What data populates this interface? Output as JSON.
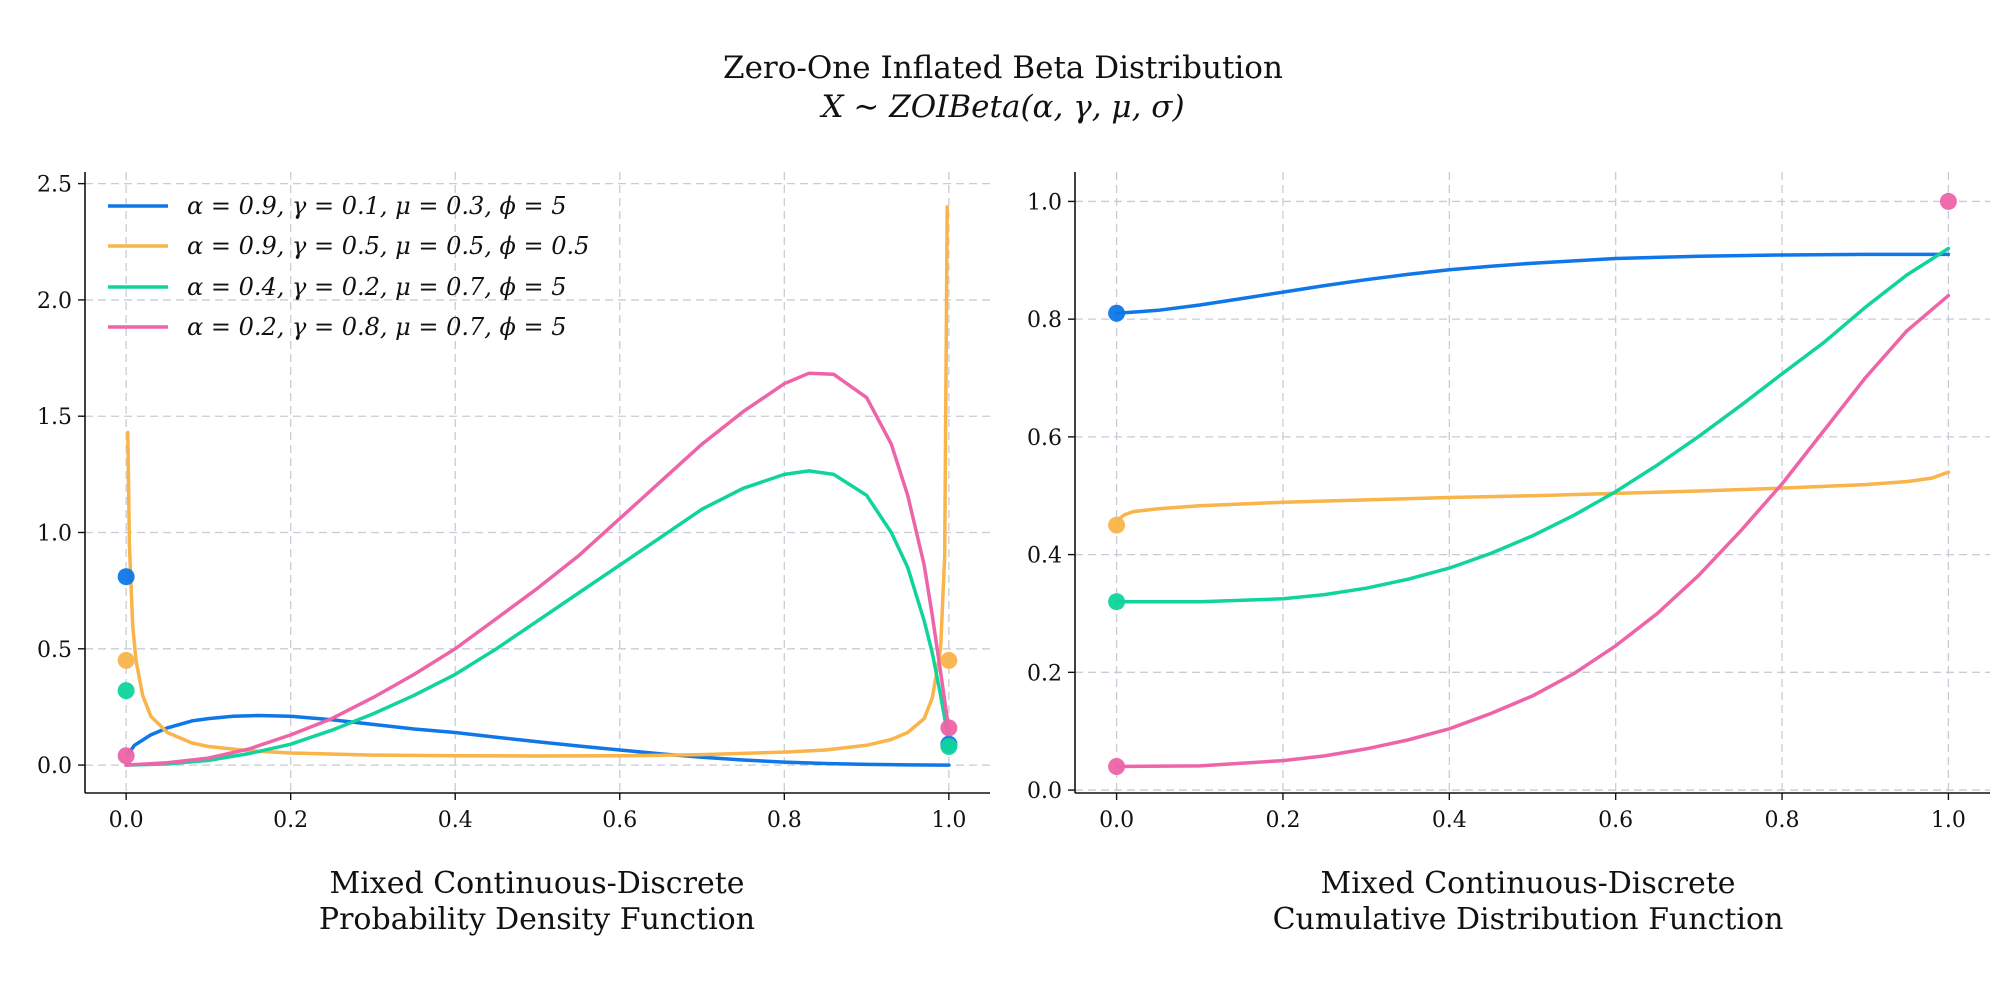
{
  "figure": {
    "title_line1": "Zero-One Inflated Beta Distribution",
    "title_line2": "X ∼ ZOIBeta(α, γ, μ, σ)"
  },
  "legend": {
    "placement": "upper-left",
    "entries": [
      "α = 0.9, γ = 0.1, μ = 0.3, ϕ = 5",
      "α = 0.9, γ = 0.5, μ = 0.5, ϕ = 0.5",
      "α = 0.4, γ = 0.2, μ = 0.7, ϕ = 5",
      "α = 0.2, γ = 0.8, μ = 0.7, ϕ = 5"
    ]
  },
  "colors": [
    "#0f77e8",
    "#f9b44a",
    "#10d49c",
    "#ee64a8"
  ],
  "chart_data": [
    {
      "type": "line",
      "xlabel_line1": "Mixed Continuous-Discrete",
      "xlabel_line2": "Probability Density Function",
      "xlim": [
        -0.05,
        1.05
      ],
      "ylim": [
        -0.12,
        2.55
      ],
      "xticks": [
        0.0,
        0.2,
        0.4,
        0.6,
        0.8,
        1.0
      ],
      "xtick_labels": [
        "0.0",
        "0.2",
        "0.4",
        "0.6",
        "0.8",
        "1.0"
      ],
      "yticks": [
        0.0,
        0.5,
        1.0,
        1.5,
        2.0,
        2.5
      ],
      "ytick_labels": [
        "0.0",
        "0.5",
        "1.0",
        "1.5",
        "2.0",
        "2.5"
      ],
      "grid": true,
      "series": [
        {
          "x": [
            0.002,
            0.01,
            0.03,
            0.05,
            0.08,
            0.1,
            0.13,
            0.16,
            0.2,
            0.25,
            0.3,
            0.35,
            0.4,
            0.45,
            0.5,
            0.55,
            0.6,
            0.65,
            0.7,
            0.75,
            0.8,
            0.85,
            0.9,
            0.95,
            1.0
          ],
          "y": [
            0.045,
            0.085,
            0.13,
            0.16,
            0.19,
            0.2,
            0.21,
            0.213,
            0.21,
            0.195,
            0.175,
            0.155,
            0.14,
            0.12,
            0.1,
            0.082,
            0.065,
            0.048,
            0.034,
            0.022,
            0.013,
            0.007,
            0.003,
            0.001,
            0.0
          ],
          "points": [
            [
              0.0,
              0.81
            ],
            [
              1.0,
              0.09
            ]
          ]
        },
        {
          "x": [
            0.002,
            0.004,
            0.008,
            0.012,
            0.02,
            0.03,
            0.05,
            0.08,
            0.1,
            0.15,
            0.2,
            0.3,
            0.4,
            0.5,
            0.6,
            0.7,
            0.8,
            0.85,
            0.9,
            0.93,
            0.95,
            0.97,
            0.98,
            0.99,
            0.995,
            0.998
          ],
          "y": [
            1.43,
            0.95,
            0.6,
            0.45,
            0.3,
            0.21,
            0.14,
            0.095,
            0.08,
            0.062,
            0.052,
            0.043,
            0.04,
            0.039,
            0.04,
            0.045,
            0.056,
            0.065,
            0.085,
            0.11,
            0.14,
            0.2,
            0.29,
            0.5,
            0.9,
            2.4
          ],
          "points": [
            [
              0.0,
              0.45
            ],
            [
              1.0,
              0.45
            ]
          ]
        },
        {
          "x": [
            0.0,
            0.05,
            0.1,
            0.15,
            0.2,
            0.25,
            0.3,
            0.35,
            0.4,
            0.45,
            0.5,
            0.55,
            0.6,
            0.65,
            0.7,
            0.75,
            0.8,
            0.83,
            0.86,
            0.9,
            0.93,
            0.95,
            0.97,
            0.98,
            0.99,
            1.0
          ],
          "y": [
            0.0,
            0.005,
            0.02,
            0.05,
            0.09,
            0.15,
            0.22,
            0.3,
            0.39,
            0.5,
            0.62,
            0.74,
            0.86,
            0.98,
            1.1,
            1.19,
            1.25,
            1.265,
            1.25,
            1.16,
            1.0,
            0.85,
            0.62,
            0.48,
            0.3,
            0.1
          ],
          "points": [
            [
              0.0,
              0.32
            ],
            [
              1.0,
              0.08
            ]
          ]
        },
        {
          "x": [
            0.0,
            0.05,
            0.1,
            0.15,
            0.2,
            0.25,
            0.3,
            0.35,
            0.4,
            0.45,
            0.5,
            0.55,
            0.6,
            0.65,
            0.7,
            0.75,
            0.8,
            0.83,
            0.86,
            0.9,
            0.93,
            0.95,
            0.97,
            0.98,
            0.99,
            1.0
          ],
          "y": [
            0.0,
            0.01,
            0.03,
            0.07,
            0.13,
            0.2,
            0.29,
            0.39,
            0.5,
            0.63,
            0.76,
            0.9,
            1.06,
            1.22,
            1.38,
            1.52,
            1.64,
            1.685,
            1.68,
            1.58,
            1.38,
            1.16,
            0.86,
            0.64,
            0.4,
            0.15
          ],
          "points": [
            [
              0.0,
              0.04
            ],
            [
              1.0,
              0.16
            ]
          ]
        }
      ]
    },
    {
      "type": "line",
      "xlabel_line1": "Mixed Continuous-Discrete",
      "xlabel_line2": "Cumulative Distribution Function",
      "xlim": [
        -0.05,
        1.05
      ],
      "ylim": [
        -0.005,
        1.05
      ],
      "xticks": [
        0.0,
        0.2,
        0.4,
        0.6,
        0.8,
        1.0
      ],
      "xtick_labels": [
        "0.0",
        "0.2",
        "0.4",
        "0.6",
        "0.8",
        "1.0"
      ],
      "yticks": [
        0.0,
        0.2,
        0.4,
        0.6,
        0.8,
        1.0
      ],
      "ytick_labels": [
        "0.0",
        "0.2",
        "0.4",
        "0.6",
        "0.8",
        "1.0"
      ],
      "grid": true,
      "series": [
        {
          "x": [
            0.0,
            0.05,
            0.1,
            0.15,
            0.2,
            0.25,
            0.3,
            0.35,
            0.4,
            0.45,
            0.5,
            0.6,
            0.7,
            0.8,
            0.9,
            1.0
          ],
          "y": [
            0.81,
            0.815,
            0.824,
            0.835,
            0.846,
            0.857,
            0.867,
            0.876,
            0.884,
            0.89,
            0.895,
            0.903,
            0.907,
            0.909,
            0.91,
            0.91
          ],
          "points": [
            [
              0.0,
              0.81
            ]
          ]
        },
        {
          "x": [
            0.0,
            0.005,
            0.01,
            0.02,
            0.05,
            0.1,
            0.2,
            0.3,
            0.4,
            0.5,
            0.6,
            0.7,
            0.8,
            0.9,
            0.95,
            0.98,
            1.0
          ],
          "y": [
            0.45,
            0.463,
            0.468,
            0.473,
            0.478,
            0.483,
            0.489,
            0.493,
            0.497,
            0.5,
            0.504,
            0.508,
            0.513,
            0.519,
            0.524,
            0.53,
            0.54
          ],
          "points": [
            [
              0.0,
              0.45
            ]
          ]
        },
        {
          "x": [
            0.0,
            0.1,
            0.2,
            0.25,
            0.3,
            0.35,
            0.4,
            0.45,
            0.5,
            0.55,
            0.6,
            0.65,
            0.7,
            0.75,
            0.8,
            0.85,
            0.9,
            0.95,
            1.0
          ],
          "y": [
            0.32,
            0.32,
            0.325,
            0.332,
            0.343,
            0.358,
            0.377,
            0.402,
            0.432,
            0.467,
            0.507,
            0.552,
            0.601,
            0.653,
            0.707,
            0.76,
            0.82,
            0.875,
            0.92
          ],
          "points": [
            [
              0.0,
              0.32
            ]
          ]
        },
        {
          "x": [
            0.0,
            0.1,
            0.2,
            0.25,
            0.3,
            0.35,
            0.4,
            0.45,
            0.5,
            0.55,
            0.6,
            0.65,
            0.7,
            0.75,
            0.8,
            0.85,
            0.9,
            0.95,
            1.0
          ],
          "y": [
            0.04,
            0.041,
            0.05,
            0.058,
            0.07,
            0.085,
            0.104,
            0.13,
            0.16,
            0.198,
            0.245,
            0.3,
            0.365,
            0.44,
            0.52,
            0.61,
            0.7,
            0.78,
            0.84
          ],
          "points": [
            [
              0.0,
              0.04
            ],
            [
              1.0,
              1.0
            ]
          ]
        }
      ]
    }
  ]
}
